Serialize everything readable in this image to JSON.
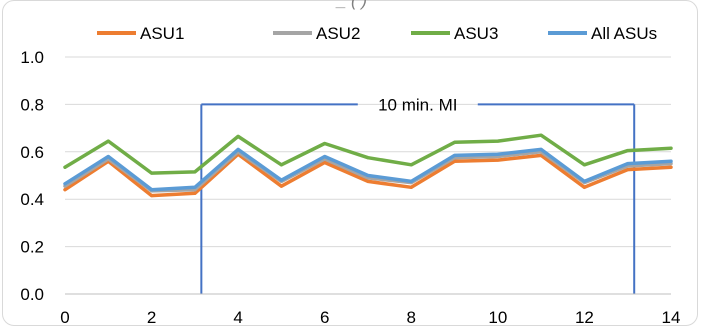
{
  "chart_data": {
    "type": "line",
    "title_fragment": "_ ( )",
    "x": [
      0,
      1,
      2,
      3,
      4,
      5,
      6,
      7,
      8,
      9,
      10,
      11,
      12,
      13,
      14
    ],
    "xlim": [
      0,
      14
    ],
    "ylim": [
      0,
      1
    ],
    "x_ticks": [
      "0",
      "2",
      "4",
      "6",
      "8",
      "10",
      "12",
      "14"
    ],
    "y_ticks": [
      "0.0",
      "0.2",
      "0.4",
      "0.6",
      "0.8",
      "1.0"
    ],
    "grid": "horizontal",
    "legend_position": "top",
    "series": [
      {
        "name": "ASU1",
        "color": "#ed7d31",
        "values": [
          0.44,
          0.56,
          0.415,
          0.425,
          0.59,
          0.455,
          0.555,
          0.475,
          0.45,
          0.56,
          0.565,
          0.585,
          0.45,
          0.525,
          0.535
        ]
      },
      {
        "name": "ASU2",
        "color": "#a5a5a5",
        "values": [
          0.455,
          0.57,
          0.435,
          0.44,
          0.6,
          0.475,
          0.57,
          0.49,
          0.47,
          0.575,
          0.58,
          0.6,
          0.47,
          0.54,
          0.55
        ]
      },
      {
        "name": "ASU3",
        "color": "#70ad47",
        "values": [
          0.535,
          0.645,
          0.51,
          0.515,
          0.665,
          0.545,
          0.635,
          0.575,
          0.545,
          0.64,
          0.645,
          0.67,
          0.545,
          0.605,
          0.615
        ]
      },
      {
        "name": "All ASUs",
        "color": "#5b9bd5",
        "values": [
          0.465,
          0.58,
          0.44,
          0.45,
          0.61,
          0.48,
          0.58,
          0.5,
          0.475,
          0.585,
          0.59,
          0.61,
          0.475,
          0.55,
          0.56
        ]
      }
    ],
    "annotation": {
      "label": "10 min. MI",
      "x_start": 3.15,
      "x_end": 13.15,
      "y": 0.8,
      "color": "#4472c4"
    }
  }
}
